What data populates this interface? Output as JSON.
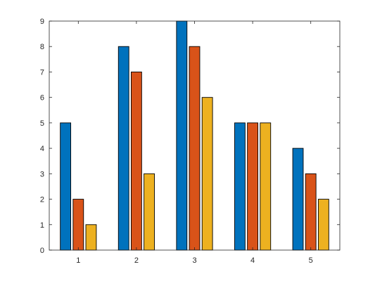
{
  "chart_data": {
    "type": "bar",
    "categories": [
      "1",
      "2",
      "3",
      "4",
      "5"
    ],
    "series": [
      {
        "values": [
          5,
          8,
          9,
          5,
          4
        ],
        "color": "#0072BD"
      },
      {
        "values": [
          2,
          7,
          8,
          5,
          3
        ],
        "color": "#D95319"
      },
      {
        "values": [
          1,
          3,
          6,
          5,
          2
        ],
        "color": "#EDB120"
      }
    ],
    "yticks": [
      "0",
      "1",
      "2",
      "3",
      "4",
      "5",
      "6",
      "7",
      "8",
      "9"
    ],
    "ylim": [
      0,
      9
    ],
    "grid": false,
    "box": true,
    "title": "",
    "xlabel": "",
    "ylabel": ""
  }
}
